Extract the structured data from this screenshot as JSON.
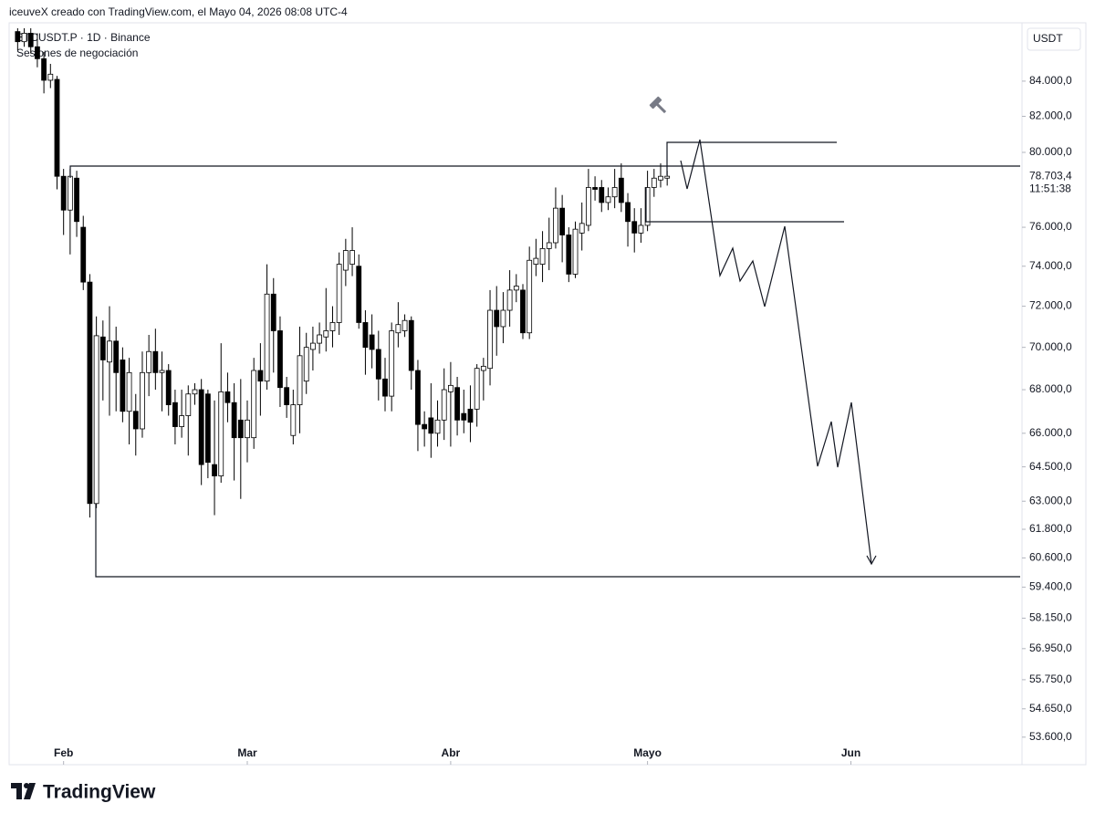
{
  "chart_data": {
    "type": "candlestick",
    "attribution": "iceuveX creado con TradingView.com, el Mayo 04, 2026 08:08 UTC-4",
    "symbol": "BTCUSDT.P · 1D · Binance",
    "subtitle": "Sesiones de negociación",
    "currency": "USDT",
    "brand": "TradingView",
    "log_y": true,
    "up_color": "#ffffff",
    "down_color": "#000000",
    "wick_color": "#000000",
    "x": [
      -7,
      -6,
      -5,
      -4,
      -3,
      -2,
      -1,
      0,
      1,
      2,
      3,
      4,
      5,
      6,
      7,
      8,
      9,
      10,
      11,
      12,
      13,
      14,
      15,
      16,
      17,
      18,
      19,
      20,
      21,
      22,
      23,
      24,
      25,
      26,
      27,
      28,
      29,
      30,
      31,
      32,
      33,
      34,
      35,
      36,
      37,
      38,
      39,
      40,
      41,
      42,
      43,
      44,
      45,
      46,
      47,
      48,
      49,
      50,
      51,
      52,
      53,
      54,
      55,
      56,
      57,
      58,
      59,
      60,
      61,
      62,
      63,
      64,
      65,
      66,
      67,
      68,
      69,
      70,
      71,
      72,
      73,
      74,
      75,
      76,
      77,
      78,
      79,
      80,
      81,
      82,
      83,
      84,
      85,
      86,
      87,
      88,
      89,
      90,
      91,
      92
    ],
    "open": [
      86900,
      86300,
      86800,
      86000,
      85300,
      84050,
      84100,
      78700,
      76900,
      78600,
      76000,
      73200,
      62900,
      70500,
      69300,
      70300,
      69400,
      67000,
      67000,
      66200,
      68800,
      69800,
      68800,
      68900,
      67400,
      66300,
      66800,
      67800,
      68000,
      67800,
      64600,
      64100,
      67900,
      67400,
      66600,
      65800,
      65800,
      68900,
      68400,
      72600,
      70800,
      68100,
      65900,
      67300,
      68400,
      69900,
      70200,
      70500,
      70800,
      71200,
      73800,
      74100,
      74000,
      71200,
      70600,
      69900,
      68500,
      67700,
      70700,
      70800,
      71300,
      68900,
      66400,
      66700,
      66000,
      66600,
      67900,
      68100,
      66900,
      67100,
      67100,
      68900,
      69000,
      71800,
      71000,
      71800,
      72800,
      72800,
      70700,
      74100,
      74100,
      74900,
      75200,
      77000,
      75600,
      73600,
      75700,
      76100,
      78100,
      78100,
      77300,
      77600,
      78600,
      77300,
      76300,
      75700,
      76100,
      78100,
      78500,
      78600
    ],
    "high": [
      87100,
      87100,
      87100,
      86800,
      85700,
      85000,
      84300,
      79100,
      79100,
      79000,
      76600,
      73600,
      71500,
      71300,
      72000,
      71000,
      70000,
      69500,
      67800,
      69800,
      70600,
      70900,
      69800,
      69200,
      68000,
      68000,
      68200,
      68300,
      68500,
      68000,
      67500,
      70200,
      68800,
      68300,
      68500,
      67500,
      69500,
      70200,
      74100,
      73400,
      71500,
      68600,
      68000,
      71000,
      70700,
      71000,
      71200,
      72900,
      72000,
      74700,
      75400,
      76000,
      74600,
      71800,
      71600,
      70800,
      69500,
      71200,
      72200,
      71600,
      71500,
      69400,
      67000,
      68300,
      67500,
      69000,
      69300,
      68600,
      68000,
      68200,
      69200,
      69500,
      72800,
      73000,
      72700,
      73800,
      73600,
      73100,
      75000,
      75400,
      75800,
      76500,
      78100,
      77700,
      76000,
      76300,
      77300,
      79100,
      78700,
      78500,
      78100,
      79100,
      79400,
      77800,
      77000,
      77000,
      79000,
      79100,
      79400,
      79000
    ],
    "low": [
      85800,
      86000,
      85600,
      84800,
      83300,
      83600,
      78000,
      75600,
      74600,
      75500,
      72800,
      62300,
      62700,
      67500,
      66800,
      67000,
      66500,
      65500,
      65000,
      65800,
      67700,
      68000,
      67000,
      66800,
      65500,
      65800,
      65000,
      67300,
      63700,
      64000,
      62400,
      63800,
      66500,
      63900,
      63100,
      64700,
      65300,
      66800,
      68000,
      68800,
      67200,
      66700,
      65500,
      66000,
      67800,
      68900,
      69700,
      69800,
      70000,
      70600,
      73000,
      73500,
      70900,
      68700,
      69000,
      67500,
      67000,
      67000,
      70000,
      70500,
      68000,
      65200,
      65400,
      64900,
      65400,
      65700,
      65400,
      65900,
      66000,
      65600,
      66300,
      67500,
      68200,
      69600,
      70200,
      71000,
      72200,
      70400,
      70400,
      73500,
      73200,
      73800,
      74900,
      74200,
      73200,
      73400,
      74800,
      75800,
      77400,
      76800,
      76900,
      77000,
      76800,
      75000,
      74700,
      75200,
      75800,
      77600,
      78100,
      78200
    ],
    "close": [
      86300,
      86800,
      86000,
      85300,
      84050,
      84400,
      78700,
      76900,
      78700,
      76300,
      73200,
      62900,
      70560,
      69400,
      70300,
      68800,
      67000,
      68800,
      66200,
      68800,
      69800,
      68800,
      68900,
      67300,
      66300,
      66800,
      67800,
      68000,
      64600,
      64700,
      64100,
      67900,
      67400,
      65800,
      65800,
      66600,
      68900,
      68400,
      72600,
      70800,
      68100,
      67300,
      67300,
      69600,
      70000,
      70200,
      70600,
      70800,
      71200,
      74100,
      74800,
      74800,
      71200,
      70000,
      69900,
      68500,
      67700,
      70800,
      71100,
      71300,
      68900,
      66400,
      66200,
      66000,
      66600,
      68000,
      68200,
      66600,
      66600,
      66500,
      69000,
      69100,
      71800,
      71000,
      71800,
      72800,
      73000,
      70700,
      74300,
      74400,
      74900,
      75200,
      77000,
      75600,
      73600,
      75900,
      76200,
      78100,
      78000,
      77300,
      77600,
      78100,
      77300,
      76300,
      75700,
      76100,
      78100,
      78600,
      78700,
      78703.4
    ],
    "xlim": [
      -8.3,
      145.8
    ],
    "xticks": [
      {
        "value": 0,
        "label": "Feb"
      },
      {
        "value": 28,
        "label": "Mar"
      },
      {
        "value": 59,
        "label": "Abr"
      },
      {
        "value": 89,
        "label": "Mayo"
      },
      {
        "value": 120,
        "label": "Jun"
      }
    ],
    "ylim": [
      53360,
      87150
    ],
    "yticks": [
      {
        "value": 84000,
        "label": "84.000,0"
      },
      {
        "value": 82000,
        "label": "82.000,0"
      },
      {
        "value": 80000,
        "label": "80.000,0"
      },
      {
        "value": 76000,
        "label": "76.000,0"
      },
      {
        "value": 74000,
        "label": "74.000,0"
      },
      {
        "value": 72000,
        "label": "72.000,0"
      },
      {
        "value": 70000,
        "label": "70.000,0"
      },
      {
        "value": 68000,
        "label": "68.000,0"
      },
      {
        "value": 66000,
        "label": "66.000,0"
      },
      {
        "value": 64500,
        "label": "64.500,0"
      },
      {
        "value": 63000,
        "label": "63.000,0"
      },
      {
        "value": 61800,
        "label": "61.800,0"
      },
      {
        "value": 60600,
        "label": "60.600,0"
      },
      {
        "value": 59400,
        "label": "59.400,0"
      },
      {
        "value": 58150,
        "label": "58.150,0"
      },
      {
        "value": 56950,
        "label": "56.950,0"
      },
      {
        "value": 55750,
        "label": "55.750,0"
      },
      {
        "value": 54650,
        "label": "54.650,0"
      },
      {
        "value": 53600,
        "label": "53.600,0"
      }
    ],
    "last_price": {
      "value": 78703.4,
      "label": "78.703,4"
    },
    "countdown": "11:51:38"
  }
}
